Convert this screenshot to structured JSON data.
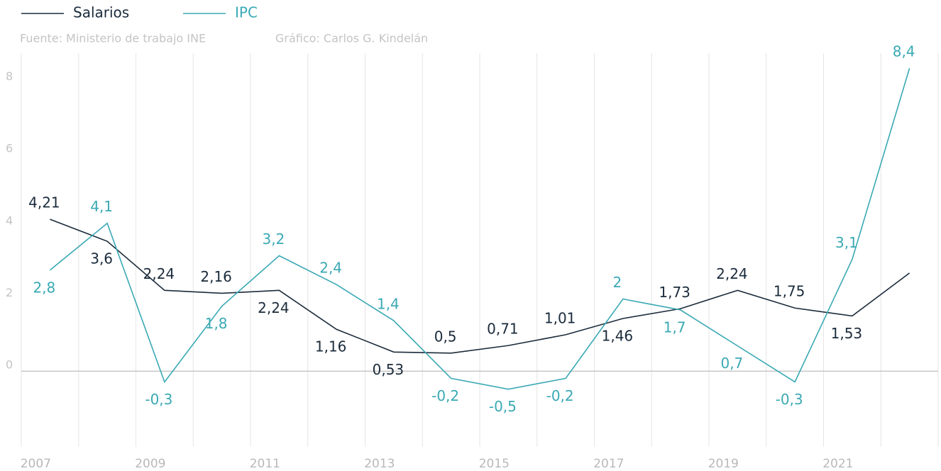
{
  "chart_data": {
    "type": "line",
    "source": "Fuente: Ministerio de trabajo INE",
    "credit": "Gráfico: Carlos G. Kindelán",
    "categories": [
      "2007",
      null,
      "2009",
      null,
      "2011",
      null,
      "2013",
      null,
      "2015",
      null,
      "2017",
      null,
      "2019",
      null,
      "2021",
      null
    ],
    "series": [
      {
        "name": "Salarios",
        "color": "#1b2b3b",
        "values": [
          4.21,
          3.6,
          2.24,
          2.16,
          2.24,
          1.16,
          0.53,
          0.5,
          0.71,
          1.01,
          1.46,
          1.73,
          2.24,
          1.75,
          1.53,
          2.72
        ],
        "value_labels": [
          "4,21",
          "3,6",
          "2,24",
          "2,16",
          "2,24",
          "1,16",
          "0,53",
          "0,5",
          "0,71",
          "1,01",
          "1,46",
          "1,73",
          "2,24",
          "1,75",
          "1,53",
          null
        ]
      },
      {
        "name": "IPC",
        "color": "#3aa9b4",
        "values": [
          2.8,
          4.1,
          -0.3,
          1.8,
          3.2,
          2.4,
          1.4,
          -0.2,
          -0.5,
          -0.2,
          2,
          1.7,
          0.7,
          -0.3,
          3.1,
          8.4
        ],
        "value_labels": [
          "2,8",
          "4,1",
          "-0,3",
          "1,8",
          "3,2",
          "2,4",
          "1,4",
          "-0,2",
          "-0,5",
          "-0,2",
          "2",
          "1,7",
          "0,7",
          "-0,3",
          "3,1",
          "8,4"
        ]
      }
    ],
    "ylim": [
      -2.1,
      9.7
    ],
    "yticks": [
      0,
      2,
      4,
      6,
      8
    ],
    "legend": "top-left"
  }
}
